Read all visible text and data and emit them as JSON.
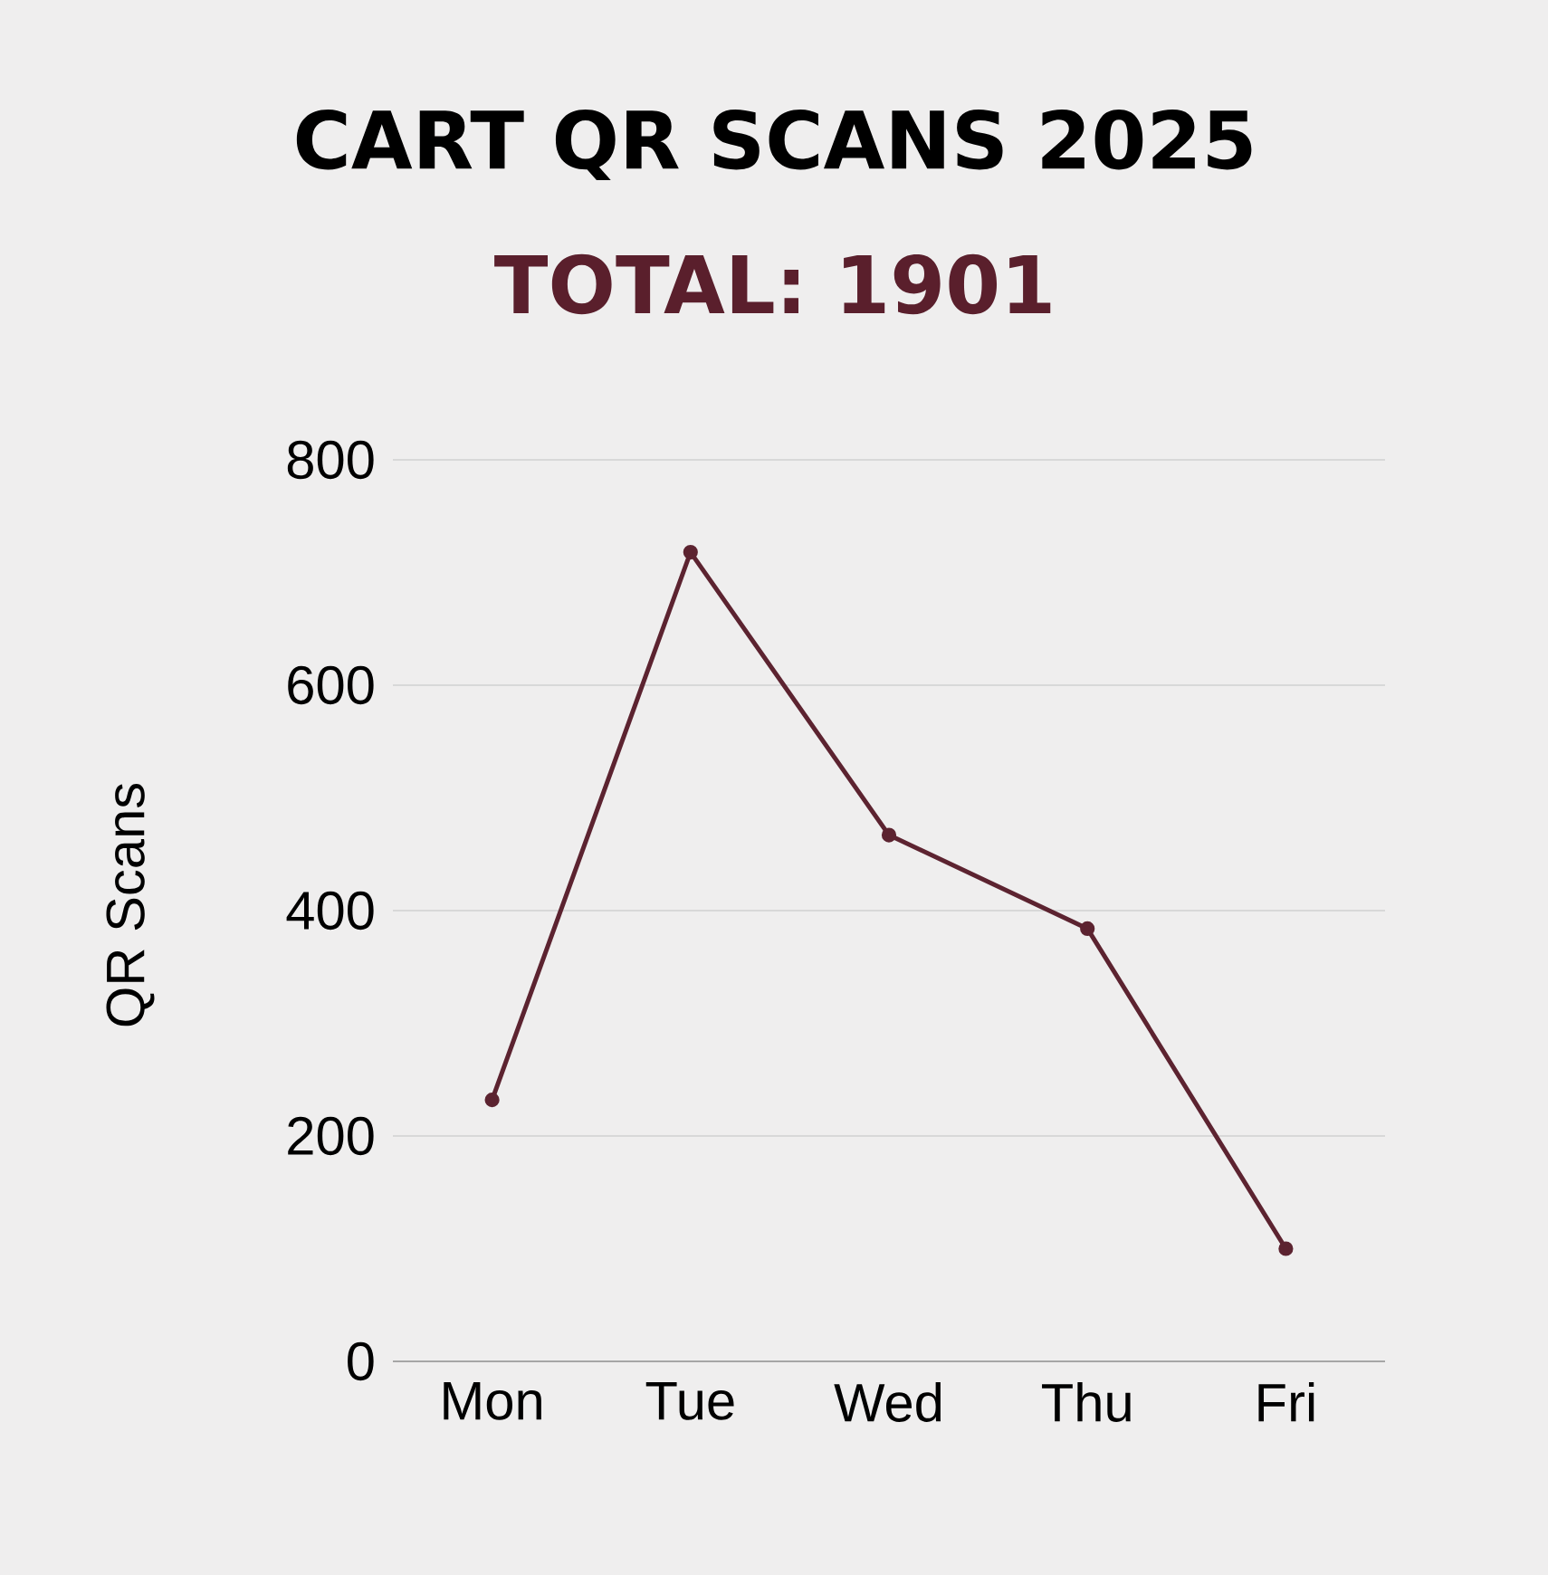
{
  "chart_data": {
    "type": "line",
    "title": "CART QR SCANS 2025",
    "subtitle": "TOTAL: 1901",
    "ylabel": "QR Scans",
    "categories": [
      "Mon",
      "Tue",
      "Wed",
      "Thu",
      "Fri"
    ],
    "series": [
      {
        "color": "#5c2330",
        "values": [
          232,
          718,
          467,
          384,
          100
        ]
      }
    ],
    "ylim": [
      0,
      800
    ],
    "yticks": [
      0,
      200,
      400,
      600,
      800
    ],
    "grid": "y",
    "marker": "circle",
    "line_style": "solid"
  }
}
